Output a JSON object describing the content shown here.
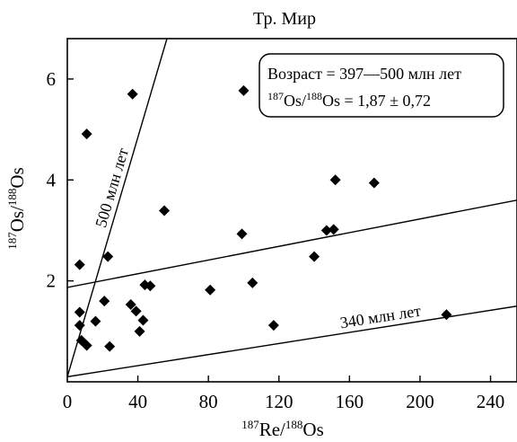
{
  "chart_data": {
    "type": "scatter",
    "title": "Тр. Мир",
    "xlabel": {
      "sup1": "187",
      "base1": "Re/",
      "sup2": "188",
      "base2": "Os"
    },
    "ylabel": {
      "sup1": "187",
      "base1": "Os/",
      "sup2": "188",
      "base2": "Os"
    },
    "xlim": [
      0,
      255
    ],
    "ylim": [
      0,
      6.8
    ],
    "x_ticks": [
      0,
      40,
      80,
      120,
      160,
      200,
      240
    ],
    "y_ticks": [
      2,
      4,
      6
    ],
    "grid": false,
    "marker": "diamond",
    "marker_color": "#000000",
    "points": [
      {
        "x": 7,
        "y": 2.32
      },
      {
        "x": 7,
        "y": 1.38
      },
      {
        "x": 7,
        "y": 1.12
      },
      {
        "x": 8,
        "y": 0.82
      },
      {
        "x": 11,
        "y": 0.72
      },
      {
        "x": 11,
        "y": 4.91
      },
      {
        "x": 16,
        "y": 1.2
      },
      {
        "x": 21,
        "y": 1.6
      },
      {
        "x": 23,
        "y": 2.48
      },
      {
        "x": 24,
        "y": 0.7
      },
      {
        "x": 36,
        "y": 1.53
      },
      {
        "x": 37,
        "y": 5.7
      },
      {
        "x": 39,
        "y": 1.4
      },
      {
        "x": 41,
        "y": 1.0
      },
      {
        "x": 43,
        "y": 1.22
      },
      {
        "x": 44,
        "y": 1.92
      },
      {
        "x": 47,
        "y": 1.9
      },
      {
        "x": 55,
        "y": 3.39
      },
      {
        "x": 81,
        "y": 1.82
      },
      {
        "x": 99,
        "y": 2.93
      },
      {
        "x": 100,
        "y": 5.77
      },
      {
        "x": 105,
        "y": 1.96
      },
      {
        "x": 117,
        "y": 1.12
      },
      {
        "x": 140,
        "y": 2.48
      },
      {
        "x": 147,
        "y": 3.0
      },
      {
        "x": 151,
        "y": 3.02
      },
      {
        "x": 152,
        "y": 4.0
      },
      {
        "x": 174,
        "y": 3.94
      },
      {
        "x": 215,
        "y": 1.33
      }
    ],
    "reference_lines": [
      {
        "label": "500 млн лет",
        "x1": 0,
        "y1": 0.1,
        "x2": 56.5,
        "y2": 6.8
      },
      {
        "label": "",
        "x1": 0,
        "y1": 1.87,
        "x2": 255,
        "y2": 3.6
      },
      {
        "label": "340 млн лет",
        "x1": 0,
        "y1": 0.1,
        "x2": 255,
        "y2": 1.5
      }
    ],
    "annotation_box": {
      "line1": "Возраст = 397—500 млн лет",
      "line2": {
        "sup1": "187",
        "base1": "Os/",
        "sup2": "188",
        "base2": "Os = 1,87 ± 0,72"
      }
    }
  }
}
